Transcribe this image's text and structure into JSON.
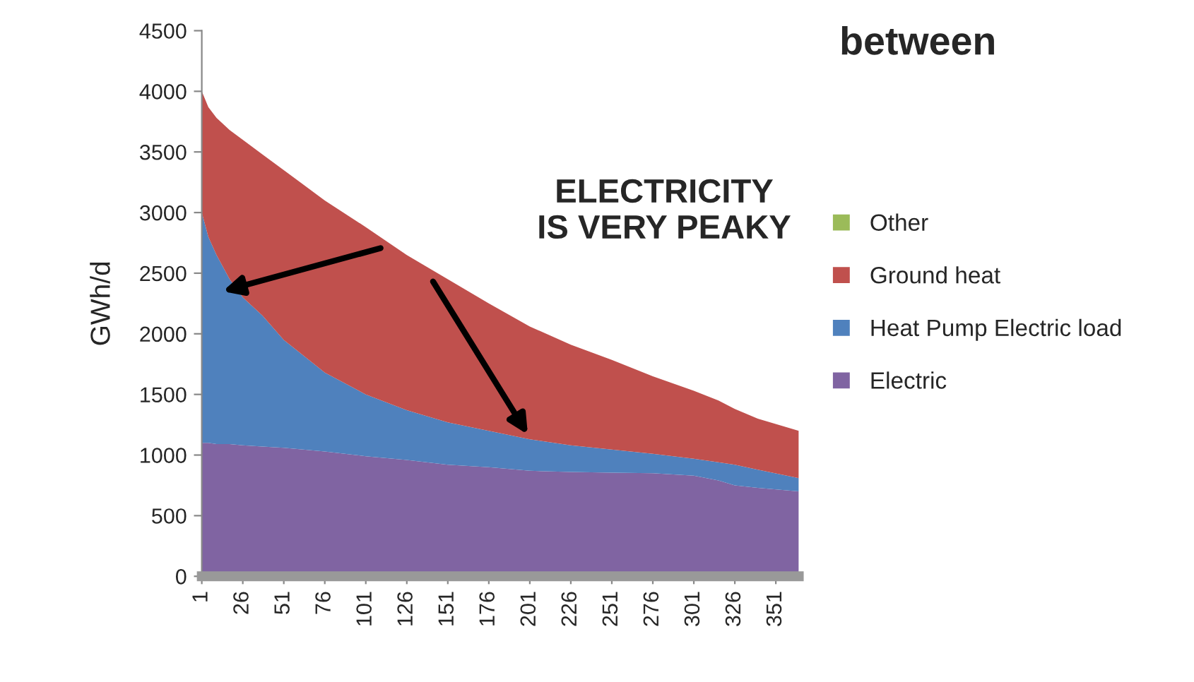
{
  "chart_data": {
    "type": "area",
    "stacked": true,
    "title": "between",
    "ylabel": "GWh/d",
    "x": [
      1,
      5,
      10,
      18,
      26,
      38,
      51,
      76,
      101,
      126,
      151,
      176,
      201,
      226,
      251,
      276,
      301,
      316,
      326,
      340,
      365
    ],
    "series": [
      {
        "name": "Electric",
        "color": "#8064a2",
        "values": [
          1100,
          1100,
          1090,
          1090,
          1080,
          1070,
          1060,
          1030,
          990,
          960,
          920,
          900,
          870,
          860,
          855,
          850,
          830,
          790,
          750,
          730,
          700
        ]
      },
      {
        "name": "Heat Pump Electric load",
        "color": "#4f81bd",
        "values": [
          1900,
          1700,
          1560,
          1360,
          1220,
          1080,
          890,
          650,
          510,
          410,
          350,
          300,
          260,
          220,
          190,
          160,
          140,
          150,
          170,
          150,
          110
        ]
      },
      {
        "name": "Ground heat",
        "color": "#c0504d",
        "values": [
          1000,
          1070,
          1130,
          1230,
          1300,
          1330,
          1400,
          1420,
          1380,
          1280,
          1180,
          1050,
          930,
          830,
          740,
          640,
          560,
          510,
          460,
          420,
          390
        ]
      },
      {
        "name": "Other",
        "color": "#9bbb59",
        "values": [
          null,
          null,
          null,
          null,
          null,
          null,
          null,
          null,
          null,
          null,
          null,
          null,
          null,
          null,
          null,
          null,
          null,
          null,
          null,
          null,
          null
        ]
      }
    ],
    "xlim": [
      1,
      365
    ],
    "xticks": [
      1,
      26,
      51,
      76,
      101,
      126,
      151,
      176,
      201,
      226,
      251,
      276,
      301,
      326,
      351
    ],
    "ylim": [
      0,
      4500
    ],
    "yticks": [
      0,
      500,
      1000,
      1500,
      2000,
      2500,
      3000,
      3500,
      4000,
      4500
    ],
    "grid": false,
    "legend": "right",
    "annotations": [
      "ELECTRICITY\nIS VERY PEAKY"
    ]
  }
}
